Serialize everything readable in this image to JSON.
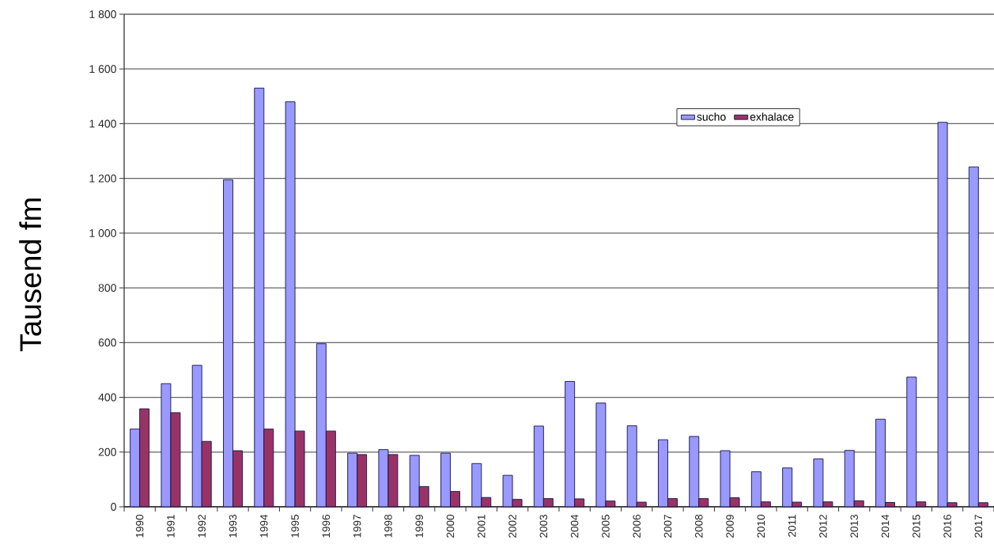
{
  "chart_data": {
    "type": "bar",
    "ylabel": "Tausend fm",
    "categories": [
      "1990",
      "1991",
      "1992",
      "1993",
      "1994",
      "1995",
      "1996",
      "1997",
      "1998",
      "1999",
      "2000",
      "2001",
      "2002",
      "2003",
      "2004",
      "2005",
      "2006",
      "2007",
      "2008",
      "2009",
      "2010",
      "2011",
      "2012",
      "2013",
      "2014",
      "2015",
      "2016",
      "2017"
    ],
    "series": [
      {
        "name": "sucho",
        "color": "#9999ff",
        "values": [
          284,
          450,
          517,
          1195,
          1530,
          1480,
          596,
          196,
          209,
          188,
          196,
          158,
          115,
          295,
          458,
          379,
          296,
          245,
          257,
          205,
          128,
          142,
          175,
          206,
          320,
          474,
          1405,
          1242
        ]
      },
      {
        "name": "exhalace",
        "color": "#993366",
        "values": [
          358,
          344,
          239,
          205,
          284,
          277,
          277,
          191,
          191,
          74,
          56,
          34,
          27,
          30,
          29,
          21,
          17,
          30,
          30,
          33,
          18,
          17,
          18,
          22,
          16,
          18,
          15,
          15
        ]
      }
    ],
    "ylim": [
      0,
      1800
    ],
    "yticks": [
      0,
      200,
      400,
      600,
      800,
      {
        "value": 1000,
        "label": "1 000"
      },
      {
        "value": 1200,
        "label": "1 200"
      },
      {
        "value": 1400,
        "label": "1 400"
      },
      {
        "value": 1600,
        "label": "1 600"
      },
      {
        "value": 1800,
        "label": "1 800"
      }
    ],
    "grid": "y",
    "legend": "top right"
  }
}
